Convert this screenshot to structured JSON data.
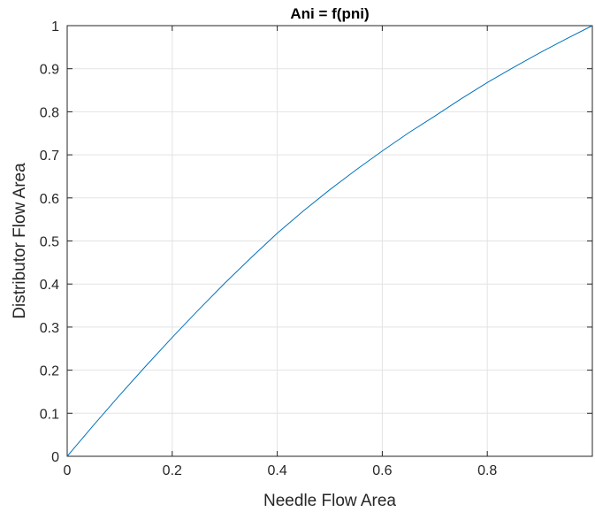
{
  "chart_data": {
    "type": "line",
    "title": "Ani = f(pni)",
    "xlabel": "Needle Flow Area",
    "ylabel": "Distributor Flow Area",
    "xlim": [
      0,
      1
    ],
    "ylim": [
      0,
      1
    ],
    "xticks": [
      0,
      0.2,
      0.4,
      0.6,
      0.8,
      1
    ],
    "xtick_labels": [
      "0",
      "0.2",
      "0.4",
      "0.6",
      "0.8",
      ""
    ],
    "yticks": [
      0,
      0.1,
      0.2,
      0.3,
      0.4,
      0.5,
      0.6,
      0.7,
      0.8,
      0.9,
      1
    ],
    "ytick_labels": [
      "0",
      "0.1",
      "0.2",
      "0.3",
      "0.4",
      "0.5",
      "0.6",
      "0.7",
      "0.8",
      "0.9",
      "1"
    ],
    "grid": true,
    "line_color": "#0072BD",
    "series": [
      {
        "x": [
          0,
          0.05,
          0.1,
          0.15,
          0.2,
          0.25,
          0.3,
          0.35,
          0.4,
          0.45,
          0.5,
          0.55,
          0.6,
          0.65,
          0.7,
          0.75,
          0.8,
          0.85,
          0.9,
          0.95,
          1
        ],
        "y": [
          0,
          0.072,
          0.142,
          0.21,
          0.276,
          0.34,
          0.402,
          0.461,
          0.518,
          0.57,
          0.619,
          0.665,
          0.709,
          0.751,
          0.79,
          0.83,
          0.868,
          0.903,
          0.937,
          0.969,
          1
        ]
      }
    ]
  }
}
